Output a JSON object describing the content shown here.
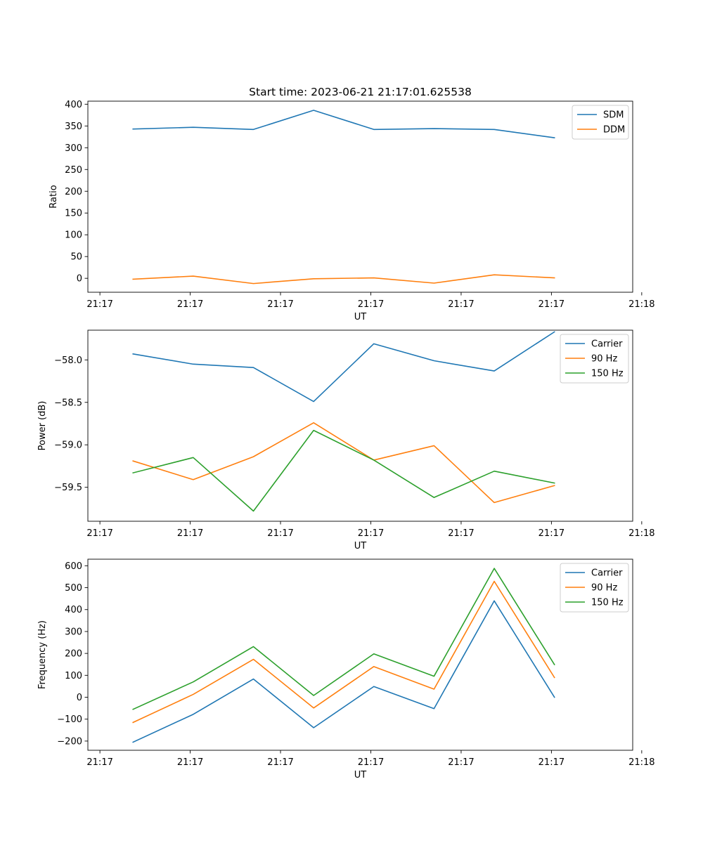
{
  "figure": {
    "title": "Start time: 2023-06-21 21:17:01.625538"
  },
  "chart_data": [
    {
      "type": "line",
      "xlabel": "UT",
      "ylabel": "Ratio",
      "x": [
        1,
        2,
        3,
        4,
        5,
        6,
        7,
        8
      ],
      "xlim": [
        0.25,
        9.3
      ],
      "xticks": [
        0.45,
        1.95,
        3.45,
        4.95,
        6.45,
        7.95,
        9.45
      ],
      "xtick_labels": [
        "21:17",
        "21:17",
        "21:17",
        "21:17",
        "21:17",
        "21:17",
        "21:18"
      ],
      "ylim": [
        -32,
        407
      ],
      "yticks": [
        0,
        50,
        100,
        150,
        200,
        250,
        300,
        350,
        400
      ],
      "ytick_labels": [
        "0",
        "50",
        "100",
        "150",
        "200",
        "250",
        "300",
        "350",
        "400"
      ],
      "legend_position": "top-right",
      "grid": false,
      "series": [
        {
          "name": "SDM",
          "color": "#1f77b4",
          "values": [
            343,
            347,
            342,
            386,
            342,
            344,
            342,
            323
          ]
        },
        {
          "name": "DDM",
          "color": "#ff7f0e",
          "values": [
            -2,
            5,
            -12,
            -1,
            1,
            -11,
            8,
            1
          ]
        }
      ]
    },
    {
      "type": "line",
      "xlabel": "UT",
      "ylabel": "Power (dB)",
      "x": [
        1,
        2,
        3,
        4,
        5,
        6,
        7,
        8
      ],
      "xlim": [
        0.25,
        9.3
      ],
      "xticks": [
        0.45,
        1.95,
        3.45,
        4.95,
        6.45,
        7.95,
        9.45
      ],
      "xtick_labels": [
        "21:17",
        "21:17",
        "21:17",
        "21:17",
        "21:17",
        "21:17",
        "21:18"
      ],
      "ylim": [
        -59.9,
        -57.65
      ],
      "yticks": [
        -58.0,
        -58.5,
        -59.0,
        -59.5
      ],
      "ytick_labels": [
        "−58.0",
        "−58.5",
        "−59.0",
        "−59.5"
      ],
      "legend_position": "top-right",
      "grid": false,
      "series": [
        {
          "name": "Carrier",
          "color": "#1f77b4",
          "values": [
            -57.93,
            -58.05,
            -58.09,
            -58.49,
            -57.81,
            -58.01,
            -58.13,
            -57.67
          ]
        },
        {
          "name": "90 Hz",
          "color": "#ff7f0e",
          "values": [
            -59.19,
            -59.41,
            -59.14,
            -58.74,
            -59.18,
            -59.01,
            -59.68,
            -59.48
          ]
        },
        {
          "name": "150 Hz",
          "color": "#2ca02c",
          "values": [
            -59.33,
            -59.15,
            -59.78,
            -58.83,
            -59.18,
            -59.62,
            -59.31,
            -59.45
          ]
        }
      ]
    },
    {
      "type": "line",
      "xlabel": "UT",
      "ylabel": "Frequency (Hz)",
      "x": [
        1,
        2,
        3,
        4,
        5,
        6,
        7,
        8
      ],
      "xlim": [
        0.25,
        9.3
      ],
      "xticks": [
        0.45,
        1.95,
        3.45,
        4.95,
        6.45,
        7.95,
        9.45
      ],
      "xtick_labels": [
        "21:17",
        "21:17",
        "21:17",
        "21:17",
        "21:17",
        "21:17",
        "21:18"
      ],
      "ylim": [
        -242,
        630
      ],
      "yticks": [
        -200,
        -100,
        0,
        100,
        200,
        300,
        400,
        500,
        600
      ],
      "ytick_labels": [
        "−200",
        "−100",
        "0",
        "100",
        "200",
        "300",
        "400",
        "500",
        "600"
      ],
      "legend_position": "top-right",
      "grid": false,
      "series": [
        {
          "name": "Carrier",
          "color": "#1f77b4",
          "values": [
            -205,
            -78,
            83,
            -139,
            49,
            -52,
            440,
            0
          ]
        },
        {
          "name": "90 Hz",
          "color": "#ff7f0e",
          "values": [
            -115,
            13,
            173,
            -49,
            140,
            37,
            529,
            90
          ]
        },
        {
          "name": "150 Hz",
          "color": "#2ca02c",
          "values": [
            -55,
            70,
            231,
            8,
            198,
            96,
            588,
            149
          ]
        }
      ]
    }
  ]
}
